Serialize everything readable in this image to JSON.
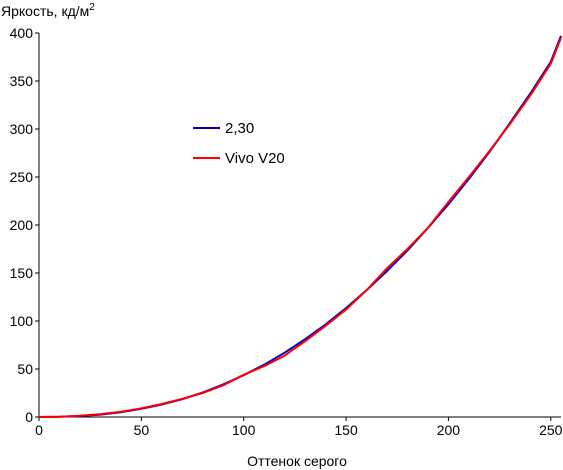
{
  "chart_data": {
    "type": "line",
    "title": "",
    "ylabel": "Яркость, кд/м",
    "ylabel_superscript": "2",
    "xlabel": "Оттенок серого",
    "xlim": [
      0,
      255
    ],
    "ylim": [
      0,
      400
    ],
    "x_ticks": [
      0,
      50,
      100,
      150,
      200,
      250
    ],
    "y_ticks": [
      0,
      50,
      100,
      150,
      200,
      250,
      300,
      350,
      400
    ],
    "grid": false,
    "legend_position": "upper-left-inside",
    "series": [
      {
        "name": "2,30",
        "color": "#0000cc",
        "x": [
          0,
          10,
          20,
          30,
          40,
          50,
          60,
          70,
          80,
          90,
          100,
          110,
          120,
          130,
          140,
          150,
          160,
          170,
          180,
          190,
          200,
          210,
          220,
          230,
          240,
          250,
          255
        ],
        "y": [
          0,
          0.2,
          1,
          2.5,
          5,
          8.5,
          13,
          18.5,
          25.5,
          34,
          43.5,
          54.5,
          67,
          81,
          96.5,
          113.5,
          132,
          152,
          173.5,
          197,
          221.5,
          248,
          276,
          306,
          337,
          370,
          397
        ]
      },
      {
        "name": "Vivo V20",
        "color": "#ff0000",
        "x": [
          0,
          10,
          20,
          30,
          40,
          50,
          60,
          70,
          80,
          90,
          100,
          110,
          120,
          130,
          140,
          150,
          160,
          170,
          180,
          190,
          200,
          210,
          220,
          230,
          240,
          250,
          255
        ],
        "y": [
          0,
          0.3,
          1.2,
          3,
          5.5,
          9,
          13.5,
          19,
          25,
          33,
          44,
          53,
          64,
          79,
          95,
          112,
          132,
          155,
          175,
          197,
          224,
          250,
          277,
          305,
          335,
          368,
          395
        ]
      }
    ]
  }
}
